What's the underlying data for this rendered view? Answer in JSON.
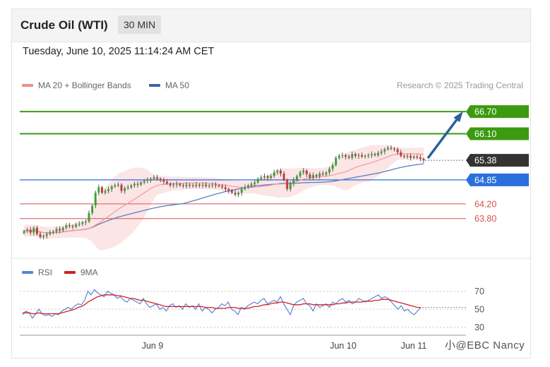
{
  "header": {
    "title": "Crude Oil (WTI)",
    "timeframe": "30 MIN",
    "timestamp": "Tuesday, June 10, 2025 11:14:24 AM CET"
  },
  "legend": {
    "ma20": {
      "label": "MA 20 + Bollinger Bands",
      "color": "#f08c8c"
    },
    "ma50": {
      "label": "MA 50",
      "color": "#3a66a8"
    },
    "credit": "Research © 2025 Trading Central"
  },
  "rsi_legend": {
    "rsi": {
      "label": "RSI",
      "color": "#5b86d4"
    },
    "ma9": {
      "label": "9MA",
      "color": "#d22020"
    }
  },
  "watermark": "小@EBC Nancy",
  "colors": {
    "green": "#3c9a10",
    "blue": "#2a6fdb",
    "red": "#d85050",
    "dark": "#333333",
    "band": "#fbdcdc",
    "arrow": "#2b5f9e"
  },
  "chart_data": [
    {
      "type": "candlestick",
      "title": "Crude Oil (WTI) 30 MIN",
      "x_tick_labels": [
        "Jun 9",
        "Jun 10",
        "Jun 11"
      ],
      "ylim": [
        62.8,
        67.2
      ],
      "levels": [
        {
          "value": 66.7,
          "label": "66.70",
          "style": "green-box"
        },
        {
          "value": 66.1,
          "label": "66.10",
          "style": "green-box"
        },
        {
          "value": 65.38,
          "label": "65.38",
          "style": "dark-box"
        },
        {
          "value": 64.85,
          "label": "64.85",
          "style": "blue-box"
        },
        {
          "value": 64.2,
          "label": "64.20",
          "style": "red-text"
        },
        {
          "value": 63.8,
          "label": "63.80",
          "style": "red-text"
        }
      ],
      "close": [
        63.46,
        63.5,
        63.42,
        63.55,
        63.38,
        63.3,
        63.33,
        63.38,
        63.42,
        63.45,
        63.52,
        63.48,
        63.55,
        63.62,
        63.6,
        63.58,
        63.64,
        63.66,
        63.7,
        63.72,
        63.95,
        64.15,
        64.5,
        64.65,
        64.5,
        64.55,
        64.6,
        64.67,
        64.7,
        64.72,
        64.55,
        64.62,
        64.65,
        64.7,
        64.74,
        64.72,
        64.78,
        64.82,
        64.85,
        64.88,
        64.92,
        64.88,
        64.85,
        64.8,
        64.75,
        64.7,
        64.72,
        64.74,
        64.7,
        64.68,
        64.72,
        64.7,
        64.68,
        64.72,
        64.7,
        64.72,
        64.68,
        64.7,
        64.72,
        64.7,
        64.68,
        64.65,
        64.6,
        64.55,
        64.5,
        64.45,
        64.5,
        64.6,
        64.65,
        64.7,
        64.74,
        64.78,
        64.88,
        64.92,
        64.95,
        64.9,
        64.96,
        65.05,
        65.1,
        65.02,
        64.85,
        64.6,
        64.75,
        64.85,
        64.95,
        65.05,
        65.1,
        65.0,
        64.9,
        64.98,
        64.95,
        65.02,
        65.0,
        65.05,
        65.15,
        65.25,
        65.45,
        65.5,
        65.52,
        65.48,
        65.45,
        65.55,
        65.5,
        65.52,
        65.48,
        65.5,
        65.52,
        65.55,
        65.52,
        65.58,
        65.62,
        65.68,
        65.72,
        65.7,
        65.68,
        65.6,
        65.5,
        65.48,
        65.5,
        65.45,
        65.48,
        65.46,
        65.42,
        65.38
      ],
      "ma20_endpoint": 65.08,
      "ma50_endpoint": 64.98,
      "forecast_arrow": {
        "from": 65.38,
        "to": 66.7
      }
    },
    {
      "type": "line",
      "title": "RSI",
      "ylim": [
        25,
        80
      ],
      "y_tick_labels": [
        70,
        50,
        30
      ],
      "series": [
        {
          "name": "RSI",
          "values": [
            44,
            48,
            46,
            40,
            45,
            50,
            45,
            43,
            44,
            42,
            45,
            44,
            48,
            50,
            52,
            50,
            54,
            56,
            55,
            60,
            70,
            66,
            72,
            68,
            66,
            64,
            70,
            68,
            66,
            62,
            64,
            60,
            58,
            62,
            60,
            58,
            56,
            62,
            56,
            52,
            54,
            56,
            50,
            52,
            48,
            54,
            56,
            52,
            54,
            50,
            56,
            52,
            54,
            50,
            56,
            48,
            52,
            50,
            46,
            50,
            52,
            56,
            54,
            58,
            50,
            48,
            44,
            52,
            50,
            54,
            56,
            58,
            56,
            60,
            62,
            56,
            58,
            60,
            58,
            64,
            56,
            50,
            44,
            54,
            58,
            60,
            62,
            56,
            54,
            48,
            56,
            52,
            54,
            56,
            52,
            58,
            56,
            60,
            62,
            58,
            60,
            56,
            58,
            62,
            60,
            58,
            60,
            62,
            64,
            66,
            62,
            64,
            62,
            58,
            54,
            50,
            54,
            48,
            50,
            46,
            44,
            48,
            52
          ]
        },
        {
          "name": "9MA",
          "values": [
            46,
            46,
            46,
            45,
            45,
            46,
            45,
            45,
            45,
            45,
            45,
            45,
            46,
            47,
            48,
            49,
            50,
            52,
            53,
            55,
            58,
            60,
            62,
            64,
            65,
            66,
            66,
            66,
            66,
            65,
            65,
            64,
            63,
            62,
            62,
            61,
            60,
            60,
            59,
            58,
            57,
            56,
            55,
            54,
            53,
            53,
            53,
            53,
            53,
            53,
            53,
            53,
            53,
            53,
            53,
            53,
            52,
            52,
            52,
            51,
            51,
            51,
            51,
            52,
            52,
            52,
            51,
            51,
            51,
            51,
            52,
            53,
            53,
            54,
            55,
            55,
            56,
            57,
            57,
            58,
            58,
            57,
            56,
            55,
            55,
            55,
            56,
            56,
            56,
            55,
            55,
            55,
            55,
            55,
            55,
            55,
            56,
            56,
            57,
            57,
            58,
            58,
            58,
            58,
            58,
            59,
            59,
            59,
            60,
            60,
            61,
            61,
            61,
            60,
            59,
            58,
            57,
            56,
            55,
            54,
            53,
            52,
            52
          ]
        }
      ]
    }
  ]
}
